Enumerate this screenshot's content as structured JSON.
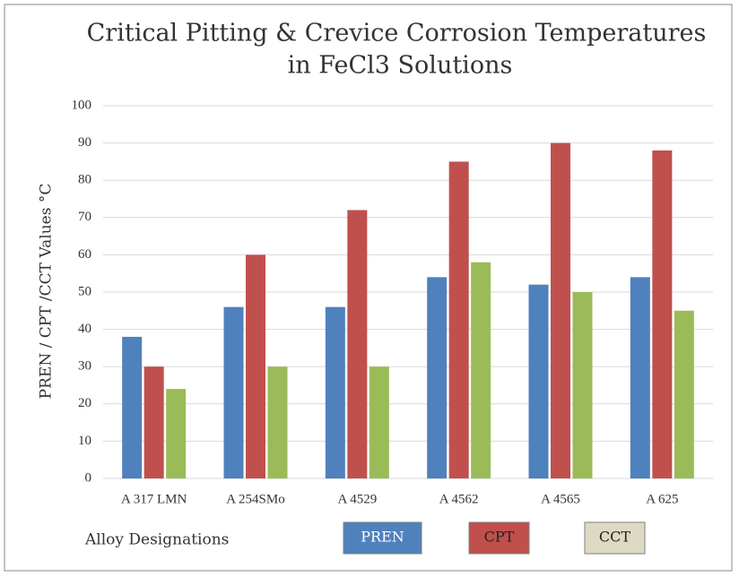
{
  "chart_data": {
    "type": "bar",
    "title": [
      "Critical  Pitting & Crevice Corrosion Temperatures",
      "in FeCl3 Solutions"
    ],
    "y_label": "PREN / CPT /CCT Values °C",
    "x_label": "Alloy  Designations",
    "categories": [
      "A 317 LMN",
      "A 254SMo",
      "A 4529",
      "A 4562",
      "A 4565",
      "A 625"
    ],
    "series": [
      {
        "name": "PREN",
        "color": "#4f81bd",
        "legend_color": "#4f81bd",
        "legend_text_color": "#ffffff",
        "values": [
          38,
          46,
          46,
          54,
          52,
          54
        ]
      },
      {
        "name": "CPT",
        "color": "#c0504d",
        "legend_color": "#c0504d",
        "legend_text_color": "#222222",
        "values": [
          30,
          60,
          72,
          85,
          90,
          88
        ]
      },
      {
        "name": "CCT",
        "color": "#9bbb59",
        "legend_color": "#ddd9c3",
        "legend_text_color": "#222222",
        "values": [
          24,
          30,
          30,
          58,
          50,
          45
        ]
      }
    ],
    "ylim": [
      0,
      100
    ],
    "yticks": [
      0,
      10,
      20,
      30,
      40,
      50,
      60,
      70,
      80,
      90,
      100
    ],
    "grid": true
  }
}
